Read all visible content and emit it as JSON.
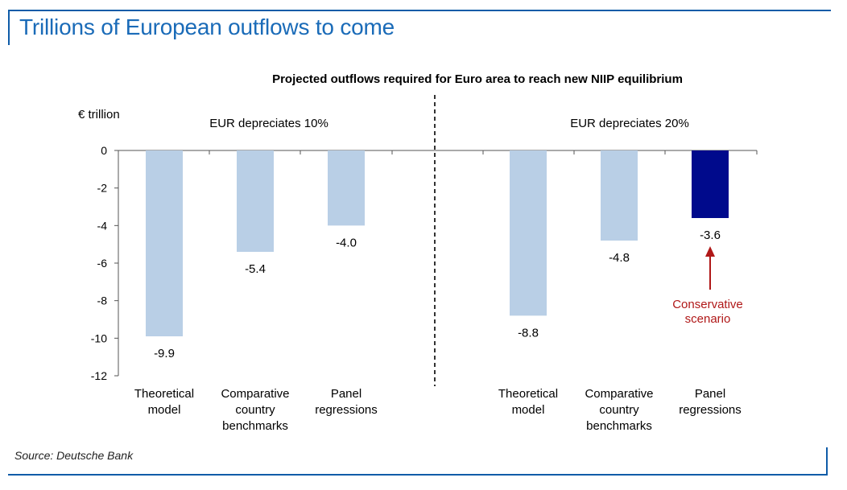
{
  "page": {
    "title": "Trillions of European outflows to come",
    "source": "Source: Deutsche Bank"
  },
  "colors": {
    "brand": "#1a6bb8",
    "bar_light": "#b9cfe6",
    "bar_dark": "#000a8c",
    "annotation": "#b01818"
  },
  "chart_data": {
    "type": "bar",
    "title": "Projected outflows required for Euro area to reach new NIIP equilibrium",
    "ylabel": "€ trillion",
    "ylim": [
      -12,
      0
    ],
    "yticks": [
      0,
      -2,
      -4,
      -6,
      -8,
      -10,
      -12
    ],
    "ytick_labels": [
      "0",
      "-2",
      "-4",
      "-6",
      "-8",
      "-10",
      "-12"
    ],
    "groups": [
      {
        "name": "EUR depreciates 10%",
        "categories": [
          [
            "Theoretical",
            "model"
          ],
          [
            "Comparative",
            "country",
            "benchmarks"
          ],
          [
            "Panel",
            "regressions"
          ]
        ],
        "values": [
          -9.9,
          -5.4,
          -4.0
        ],
        "value_labels": [
          "-9.9",
          "-5.4",
          "-4.0"
        ],
        "highlight": [
          false,
          false,
          false
        ]
      },
      {
        "name": "EUR depreciates 20%",
        "categories": [
          [
            "Theoretical",
            "model"
          ],
          [
            "Comparative",
            "country",
            "benchmarks"
          ],
          [
            "Panel",
            "regressions"
          ]
        ],
        "values": [
          -8.8,
          -4.8,
          -3.6
        ],
        "value_labels": [
          "-8.8",
          "-4.8",
          "-3.6"
        ],
        "highlight": [
          false,
          false,
          true
        ]
      }
    ],
    "annotation": {
      "lines": [
        "Conservative",
        "scenario"
      ],
      "group": 1,
      "index": 2
    }
  }
}
